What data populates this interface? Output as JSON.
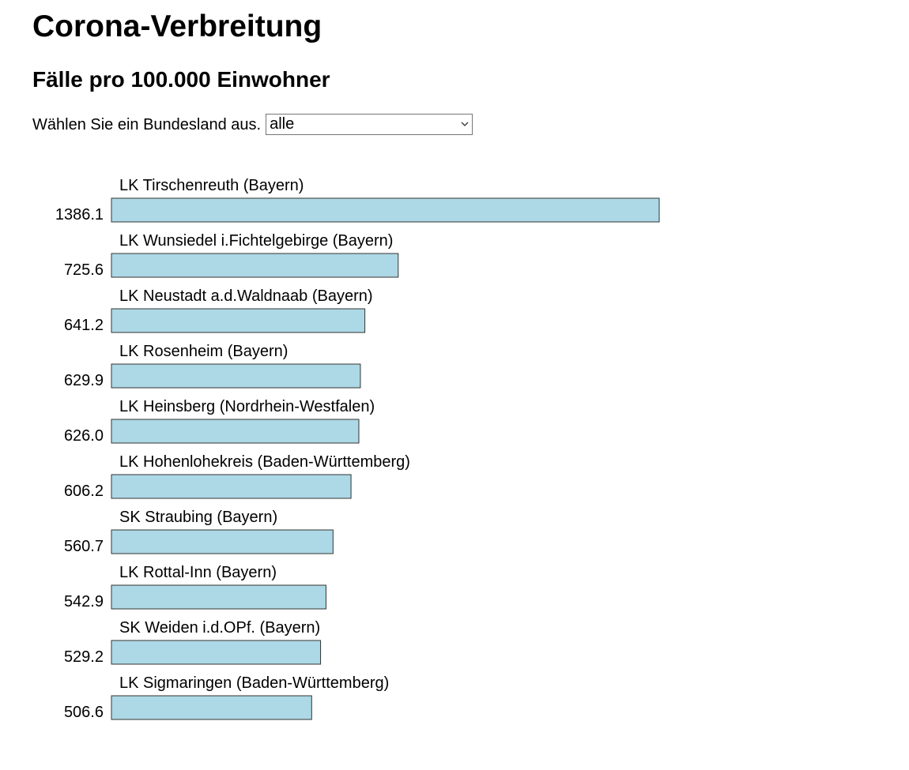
{
  "header": {
    "title": "Corona-Verbreitung",
    "subtitle": "Fälle pro 100.000 Einwohner"
  },
  "filter": {
    "label": "Wählen Sie ein Bundesland aus.",
    "selected": "alle",
    "icon": "chevron-down-icon"
  },
  "colors": {
    "bar_fill": "#add8e6",
    "bar_stroke": "#333333",
    "text": "#000000"
  },
  "chart_data": {
    "type": "bar",
    "orientation": "horizontal",
    "categories": [
      "LK Tirschenreuth (Bayern)",
      "LK Wunsiedel i.Fichtelgebirge (Bayern)",
      "LK Neustadt a.d.Waldnaab (Bayern)",
      "LK Rosenheim (Bayern)",
      "LK Heinsberg (Nordrhein-Westfalen)",
      "LK Hohenlohekreis (Baden-Württemberg)",
      "SK Straubing (Bayern)",
      "LK Rottal-Inn (Bayern)",
      "SK Weiden i.d.OPf. (Bayern)",
      "LK Sigmaringen (Baden-Württemberg)"
    ],
    "values": [
      1386.1,
      725.6,
      641.2,
      629.9,
      626.0,
      606.2,
      560.7,
      542.9,
      529.2,
      506.6
    ],
    "value_labels": [
      "1386.1",
      "725.6",
      "641.2",
      "629.9",
      "626.0",
      "606.2",
      "560.7",
      "542.9",
      "529.2",
      "506.6"
    ],
    "title": "",
    "xlabel": "",
    "ylabel": "",
    "grid": false,
    "legend": "none"
  }
}
